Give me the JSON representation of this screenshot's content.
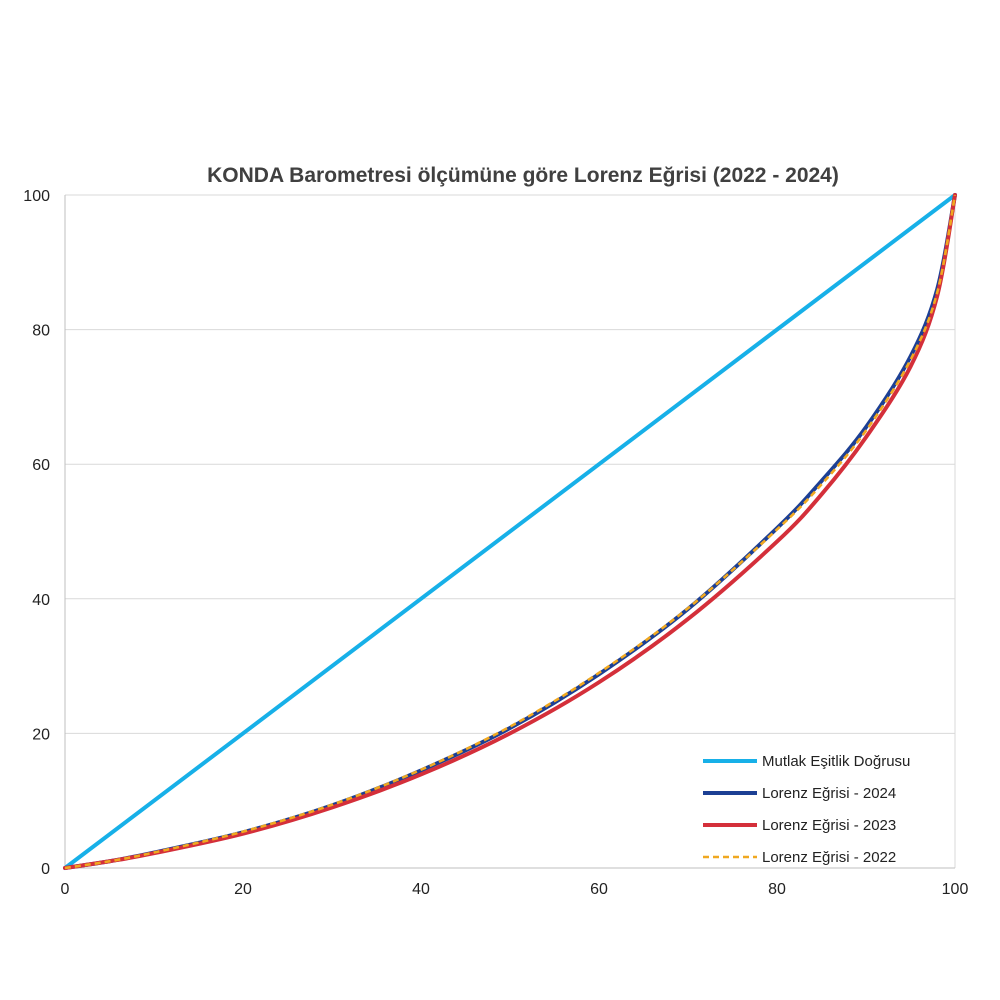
{
  "chart_data": {
    "type": "line",
    "title": "KONDA Barometresi ölçümüne göre Lorenz Eğrisi (2022 - 2024)",
    "xlabel": "",
    "ylabel": "",
    "xlim": [
      0,
      100
    ],
    "ylim": [
      0,
      100
    ],
    "x_ticks": [
      0,
      20,
      40,
      60,
      80,
      100
    ],
    "y_ticks": [
      0,
      20,
      40,
      60,
      80,
      100
    ],
    "grid": true,
    "legend_position": "bottom-right",
    "series": [
      {
        "name": "Mutlak Eşitlik Doğrusu",
        "color": "#17b0e8",
        "style": "solid",
        "x": [
          0,
          100
        ],
        "y": [
          0,
          100
        ]
      },
      {
        "name": "Lorenz Eğrisi - 2024",
        "color": "#1c3f94",
        "style": "solid",
        "x": [
          0,
          5,
          10,
          20,
          30,
          40,
          50,
          60,
          70,
          80,
          85,
          90,
          95,
          98,
          100
        ],
        "y": [
          0,
          1,
          2.3,
          5.3,
          9.3,
          14.5,
          20.8,
          28.8,
          38.5,
          50.5,
          57.5,
          65.5,
          76,
          86,
          100
        ]
      },
      {
        "name": "Lorenz Eğrisi - 2023",
        "color": "#d42f3a",
        "style": "solid",
        "x": [
          0,
          5,
          10,
          20,
          30,
          40,
          50,
          60,
          70,
          80,
          85,
          90,
          95,
          98,
          100
        ],
        "y": [
          0,
          1,
          2.2,
          5.1,
          9,
          13.9,
          20,
          27.6,
          37,
          48.5,
          55.5,
          64,
          74.5,
          85,
          100
        ]
      },
      {
        "name": "Lorenz Eğrisi - 2022",
        "color": "#f0a820",
        "style": "dashed",
        "x": [
          0,
          5,
          10,
          20,
          30,
          40,
          50,
          60,
          70,
          80,
          85,
          90,
          95,
          98,
          100
        ],
        "y": [
          0,
          1,
          2.3,
          5.4,
          9.4,
          14.6,
          21,
          29,
          38.6,
          50.3,
          57,
          65,
          75.5,
          85.5,
          100
        ]
      }
    ]
  }
}
